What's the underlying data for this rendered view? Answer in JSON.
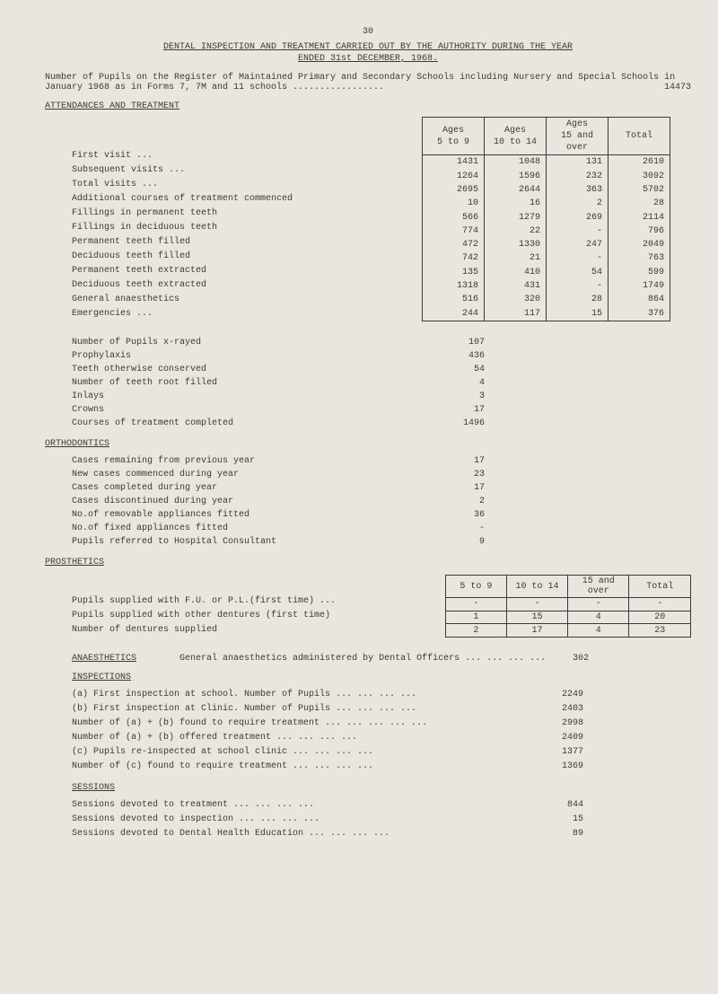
{
  "page_number": "30",
  "title_line1": "DENTAL INSPECTION AND TREATMENT CARRIED OUT BY THE AUTHORITY DURING THE YEAR",
  "title_line2": "ENDED 31st DECEMBER, 1968.",
  "intro": "Number of Pupils on the Register of Maintained Primary and Secondary Schools including Nursery and Special Schools in January 1968 as in Forms 7, 7M and 11 schools  .................",
  "intro_value": "14473",
  "attendances_header": "ATTENDANCES AND TREATMENT",
  "main_headers": [
    "Ages\n5 to 9",
    "Ages\n10 to 14",
    "Ages\n15 and over",
    "Total"
  ],
  "main_rows": [
    {
      "label": "First visit          ...",
      "v": [
        "1431",
        "1048",
        "131",
        "2610"
      ]
    },
    {
      "label": "Subsequent visits ...",
      "v": [
        "1264",
        "1596",
        "232",
        "3092"
      ]
    },
    {
      "label": "Total visits      ...",
      "v": [
        "2695",
        "2644",
        "363",
        "5702"
      ]
    },
    {
      "label": "Additional courses of treatment commenced",
      "v": [
        "10",
        "16",
        "2",
        "28"
      ]
    },
    {
      "label": "Fillings in permanent teeth",
      "v": [
        "566",
        "1279",
        "269",
        "2114"
      ]
    },
    {
      "label": "Fillings in deciduous teeth",
      "v": [
        "774",
        "22",
        "-",
        "796"
      ]
    },
    {
      "label": "Permanent teeth filled",
      "v": [
        "472",
        "1330",
        "247",
        "2049"
      ]
    },
    {
      "label": "Deciduous teeth filled",
      "v": [
        "742",
        "21",
        "-",
        "763"
      ]
    },
    {
      "label": "Permanent teeth extracted",
      "v": [
        "135",
        "410",
        "54",
        "599"
      ]
    },
    {
      "label": "Deciduous teeth extracted",
      "v": [
        "1318",
        "431",
        "-",
        "1749"
      ]
    },
    {
      "label": "General anaesthetics",
      "v": [
        "516",
        "320",
        "28",
        "864"
      ]
    },
    {
      "label": "Emergencies        ...",
      "v": [
        "244",
        "117",
        "15",
        "376"
      ]
    }
  ],
  "list_block1": [
    {
      "label": "Number of Pupils x-rayed",
      "v": "107"
    },
    {
      "label": "Prophylaxis",
      "v": "436"
    },
    {
      "label": "Teeth otherwise conserved",
      "v": "54"
    },
    {
      "label": "Number of teeth root filled",
      "v": "4"
    },
    {
      "label": "Inlays",
      "v": "3"
    },
    {
      "label": "Crowns",
      "v": "17"
    },
    {
      "label": "Courses of treatment completed",
      "v": "1496"
    }
  ],
  "ortho_header": "ORTHODONTICS",
  "list_block2": [
    {
      "label": "Cases remaining from previous year",
      "v": "17"
    },
    {
      "label": "New cases commenced during year",
      "v": "23"
    },
    {
      "label": "Cases completed during year",
      "v": "17"
    },
    {
      "label": "Cases discontinued during year",
      "v": "2"
    },
    {
      "label": "No.of removable appliances fitted",
      "v": "36"
    },
    {
      "label": "No.of fixed appliances fitted",
      "v": "-"
    },
    {
      "label": "Pupils referred to Hospital Consultant",
      "v": "9"
    }
  ],
  "pros_header": "PROSTHETICS",
  "pros_headers": [
    "5 to 9",
    "10 to 14",
    "15 and over",
    "Total"
  ],
  "pros_rows": [
    {
      "label": "Pupils supplied with F.U. or P.L.(first time) ...",
      "v": [
        "-",
        "-",
        "-",
        "-"
      ]
    },
    {
      "label": "Pupils supplied with other dentures (first time)",
      "v": [
        "1",
        "15",
        "4",
        "20"
      ]
    },
    {
      "label": "Number of dentures supplied",
      "v": [
        "2",
        "17",
        "4",
        "23"
      ]
    }
  ],
  "anaes_header": "ANAESTHETICS",
  "anaes_text": "General anaesthetics administered by Dental Officers    ...   ...   ...   ...",
  "anaes_value": "302",
  "insp_header": "INSPECTIONS",
  "insp_rows": [
    {
      "label": "(a) First inspection at school. Number of Pupils",
      "v": "2249"
    },
    {
      "label": "(b) First inspection at Clinic. Number of Pupils",
      "v": "2403"
    },
    {
      "label": "    Number of (a) + (b) found to require treatment ...",
      "v": "2998"
    },
    {
      "label": "    Number of (a) + (b) offered treatment",
      "v": "2409"
    },
    {
      "label": "(c) Pupils re-inspected at school clinic",
      "v": "1377"
    },
    {
      "label": "    Number of (c) found to require treatment",
      "v": "1369"
    }
  ],
  "sess_header": "SESSIONS",
  "sess_rows": [
    {
      "label": "Sessions devoted to treatment",
      "v": "844"
    },
    {
      "label": "Sessions devoted to inspection",
      "v": "15"
    },
    {
      "label": "Sessions devoted to Dental Health Education",
      "v": "89"
    }
  ]
}
